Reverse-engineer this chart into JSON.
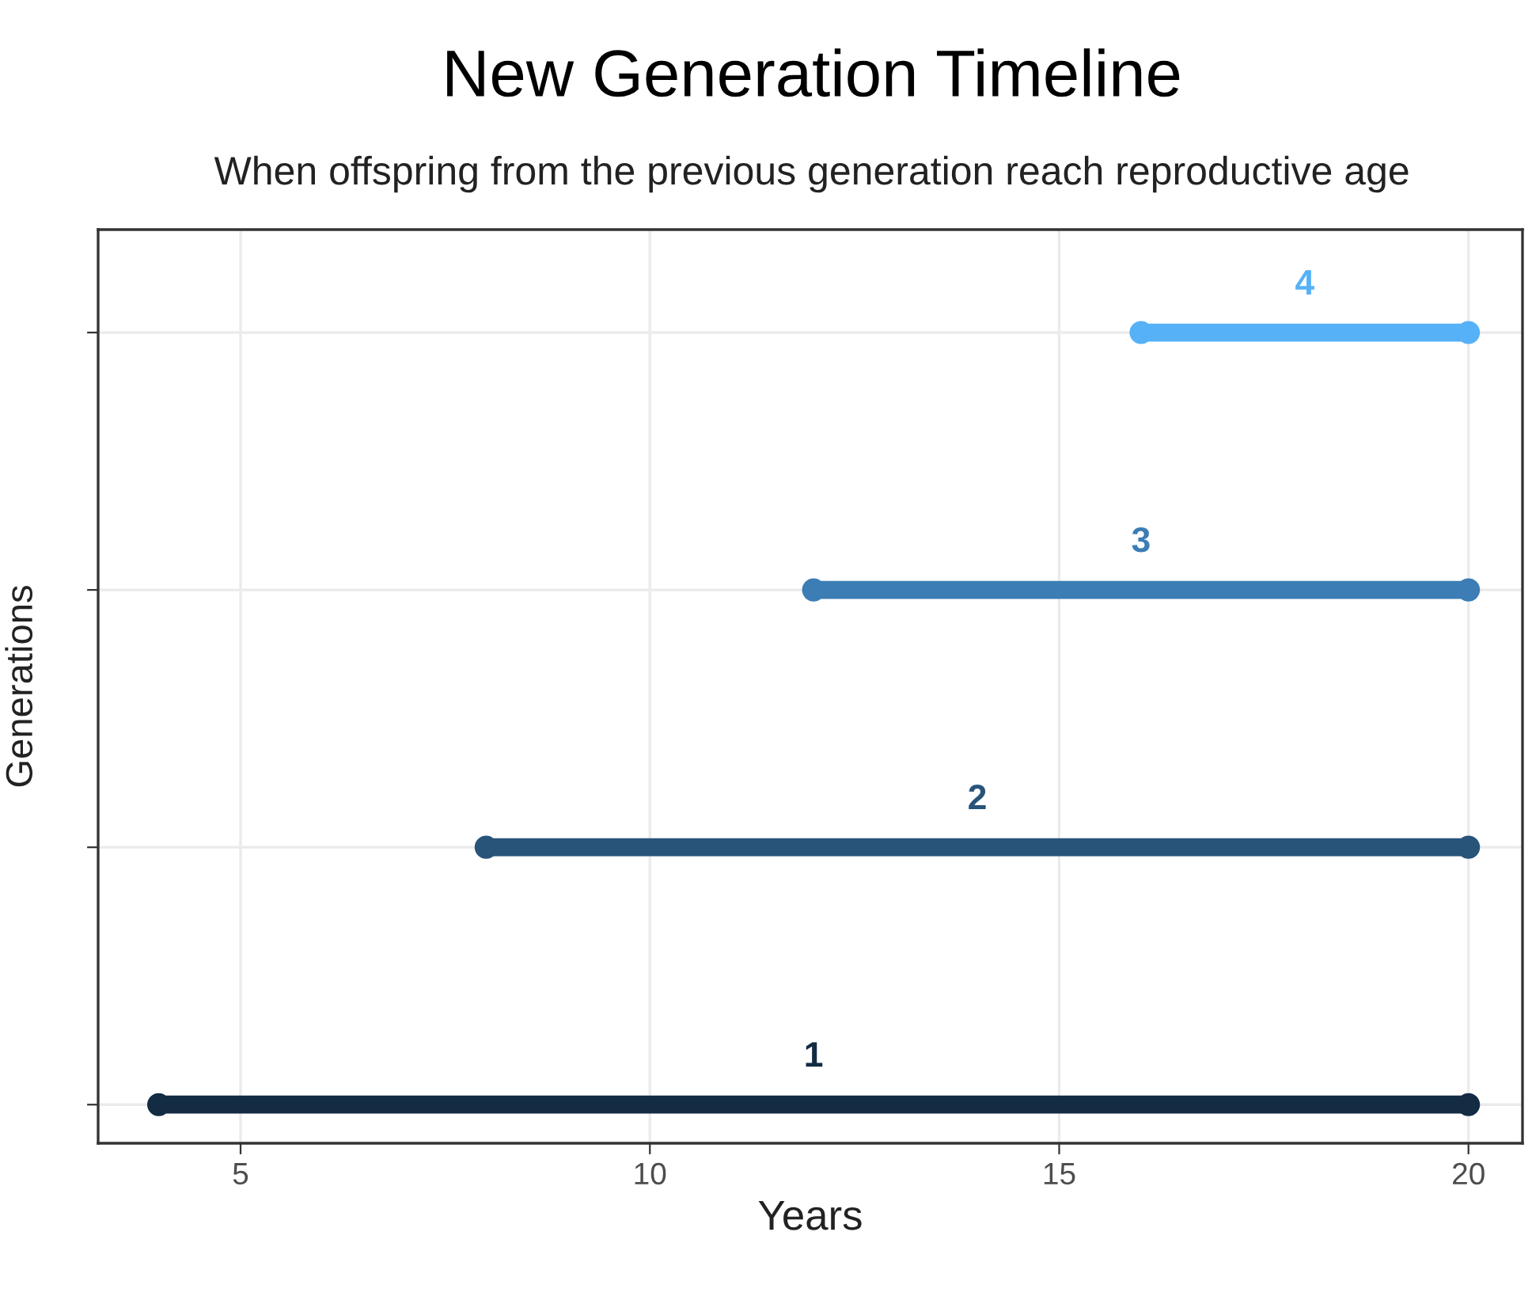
{
  "chart_data": {
    "type": "bar",
    "orientation": "horizontal",
    "title": "New Generation Timeline",
    "subtitle": "When offspring from the previous generation reach reproductive age",
    "xlabel": "Years",
    "ylabel": "Generations",
    "categories": [
      null,
      null,
      null,
      null
    ],
    "series": [
      {
        "base": [
          16,
          12,
          8,
          4
        ],
        "values": [
          4,
          8,
          12,
          16
        ],
        "colors": [
          "#56b1f7",
          "#3b7db4",
          "#28547a",
          "#132b43"
        ]
      },
      {
        "type": "scatter",
        "values": [
          16,
          12,
          8,
          4
        ],
        "colors": [
          "#56b1f7",
          "#3b7db4",
          "#28547a",
          "#132b43"
        ]
      },
      {
        "type": "scatter",
        "values": [
          20,
          20,
          20,
          20
        ],
        "colors": [
          "#56b1f7",
          "#3b7db4",
          "#28547a",
          "#132b43"
        ]
      }
    ],
    "annotations": [
      "4",
      "3",
      "2",
      "1"
    ],
    "xlim": [
      3.26,
      20.66
    ],
    "xticks": [
      5,
      10,
      15,
      20
    ],
    "grid": true,
    "marker": "circle",
    "legend": false
  }
}
